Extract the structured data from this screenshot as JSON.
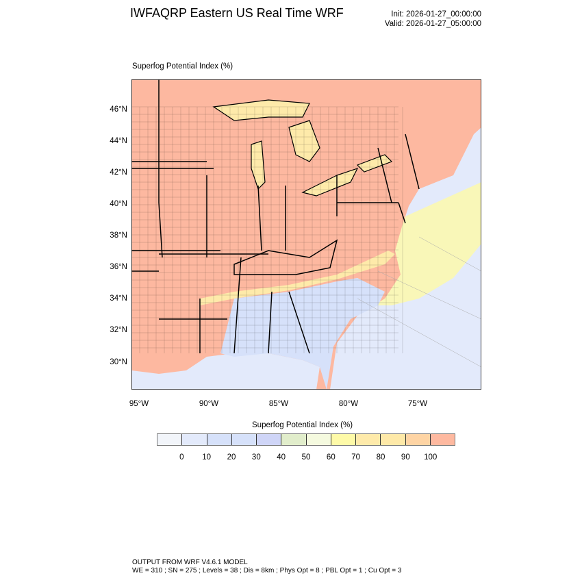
{
  "header": {
    "title": "IWFAQRP Eastern US Real Time WRF",
    "init": "Init: 2026-01-27_00:00:00",
    "valid": "Valid: 2026-01-27_05:00:00"
  },
  "map": {
    "subtitle": "Superfog Potential Index   (%)",
    "lat_labels": [
      "46°N",
      "44°N",
      "42°N",
      "40°N",
      "38°N",
      "36°N",
      "34°N",
      "32°N",
      "30°N"
    ],
    "lon_labels": [
      "95°W",
      "90°W",
      "85°W",
      "80°W",
      "75°W"
    ],
    "colors": {
      "land_high": "#fdb8a0",
      "ocean_low": "#e3eafb",
      "lakes": "#feeaaa",
      "southeast_low": "#d6e1fa",
      "coast_mid": "#fefaa8"
    }
  },
  "colorbar": {
    "title": "Superfog Potential Index  (%)",
    "labels": [
      "0",
      "10",
      "20",
      "30",
      "40",
      "50",
      "60",
      "70",
      "80",
      "90",
      "100"
    ],
    "colors": [
      "#f2f5fa",
      "#e3eafb",
      "#d6e1fa",
      "#d6e1fa",
      "#cfd5f7",
      "#e1edcb",
      "#f5fadf",
      "#fefaa8",
      "#feeaaa",
      "#fee9a8",
      "#fed4a4",
      "#feb9a0"
    ]
  },
  "footer": {
    "line1": "OUTPUT FROM WRF V4.6.1 MODEL",
    "line2": "WE = 310 ; SN = 275 ; Levels = 38 ; Dis = 8km ; Phys Opt = 8 ; PBL Opt = 1 ; Cu Opt = 3"
  }
}
